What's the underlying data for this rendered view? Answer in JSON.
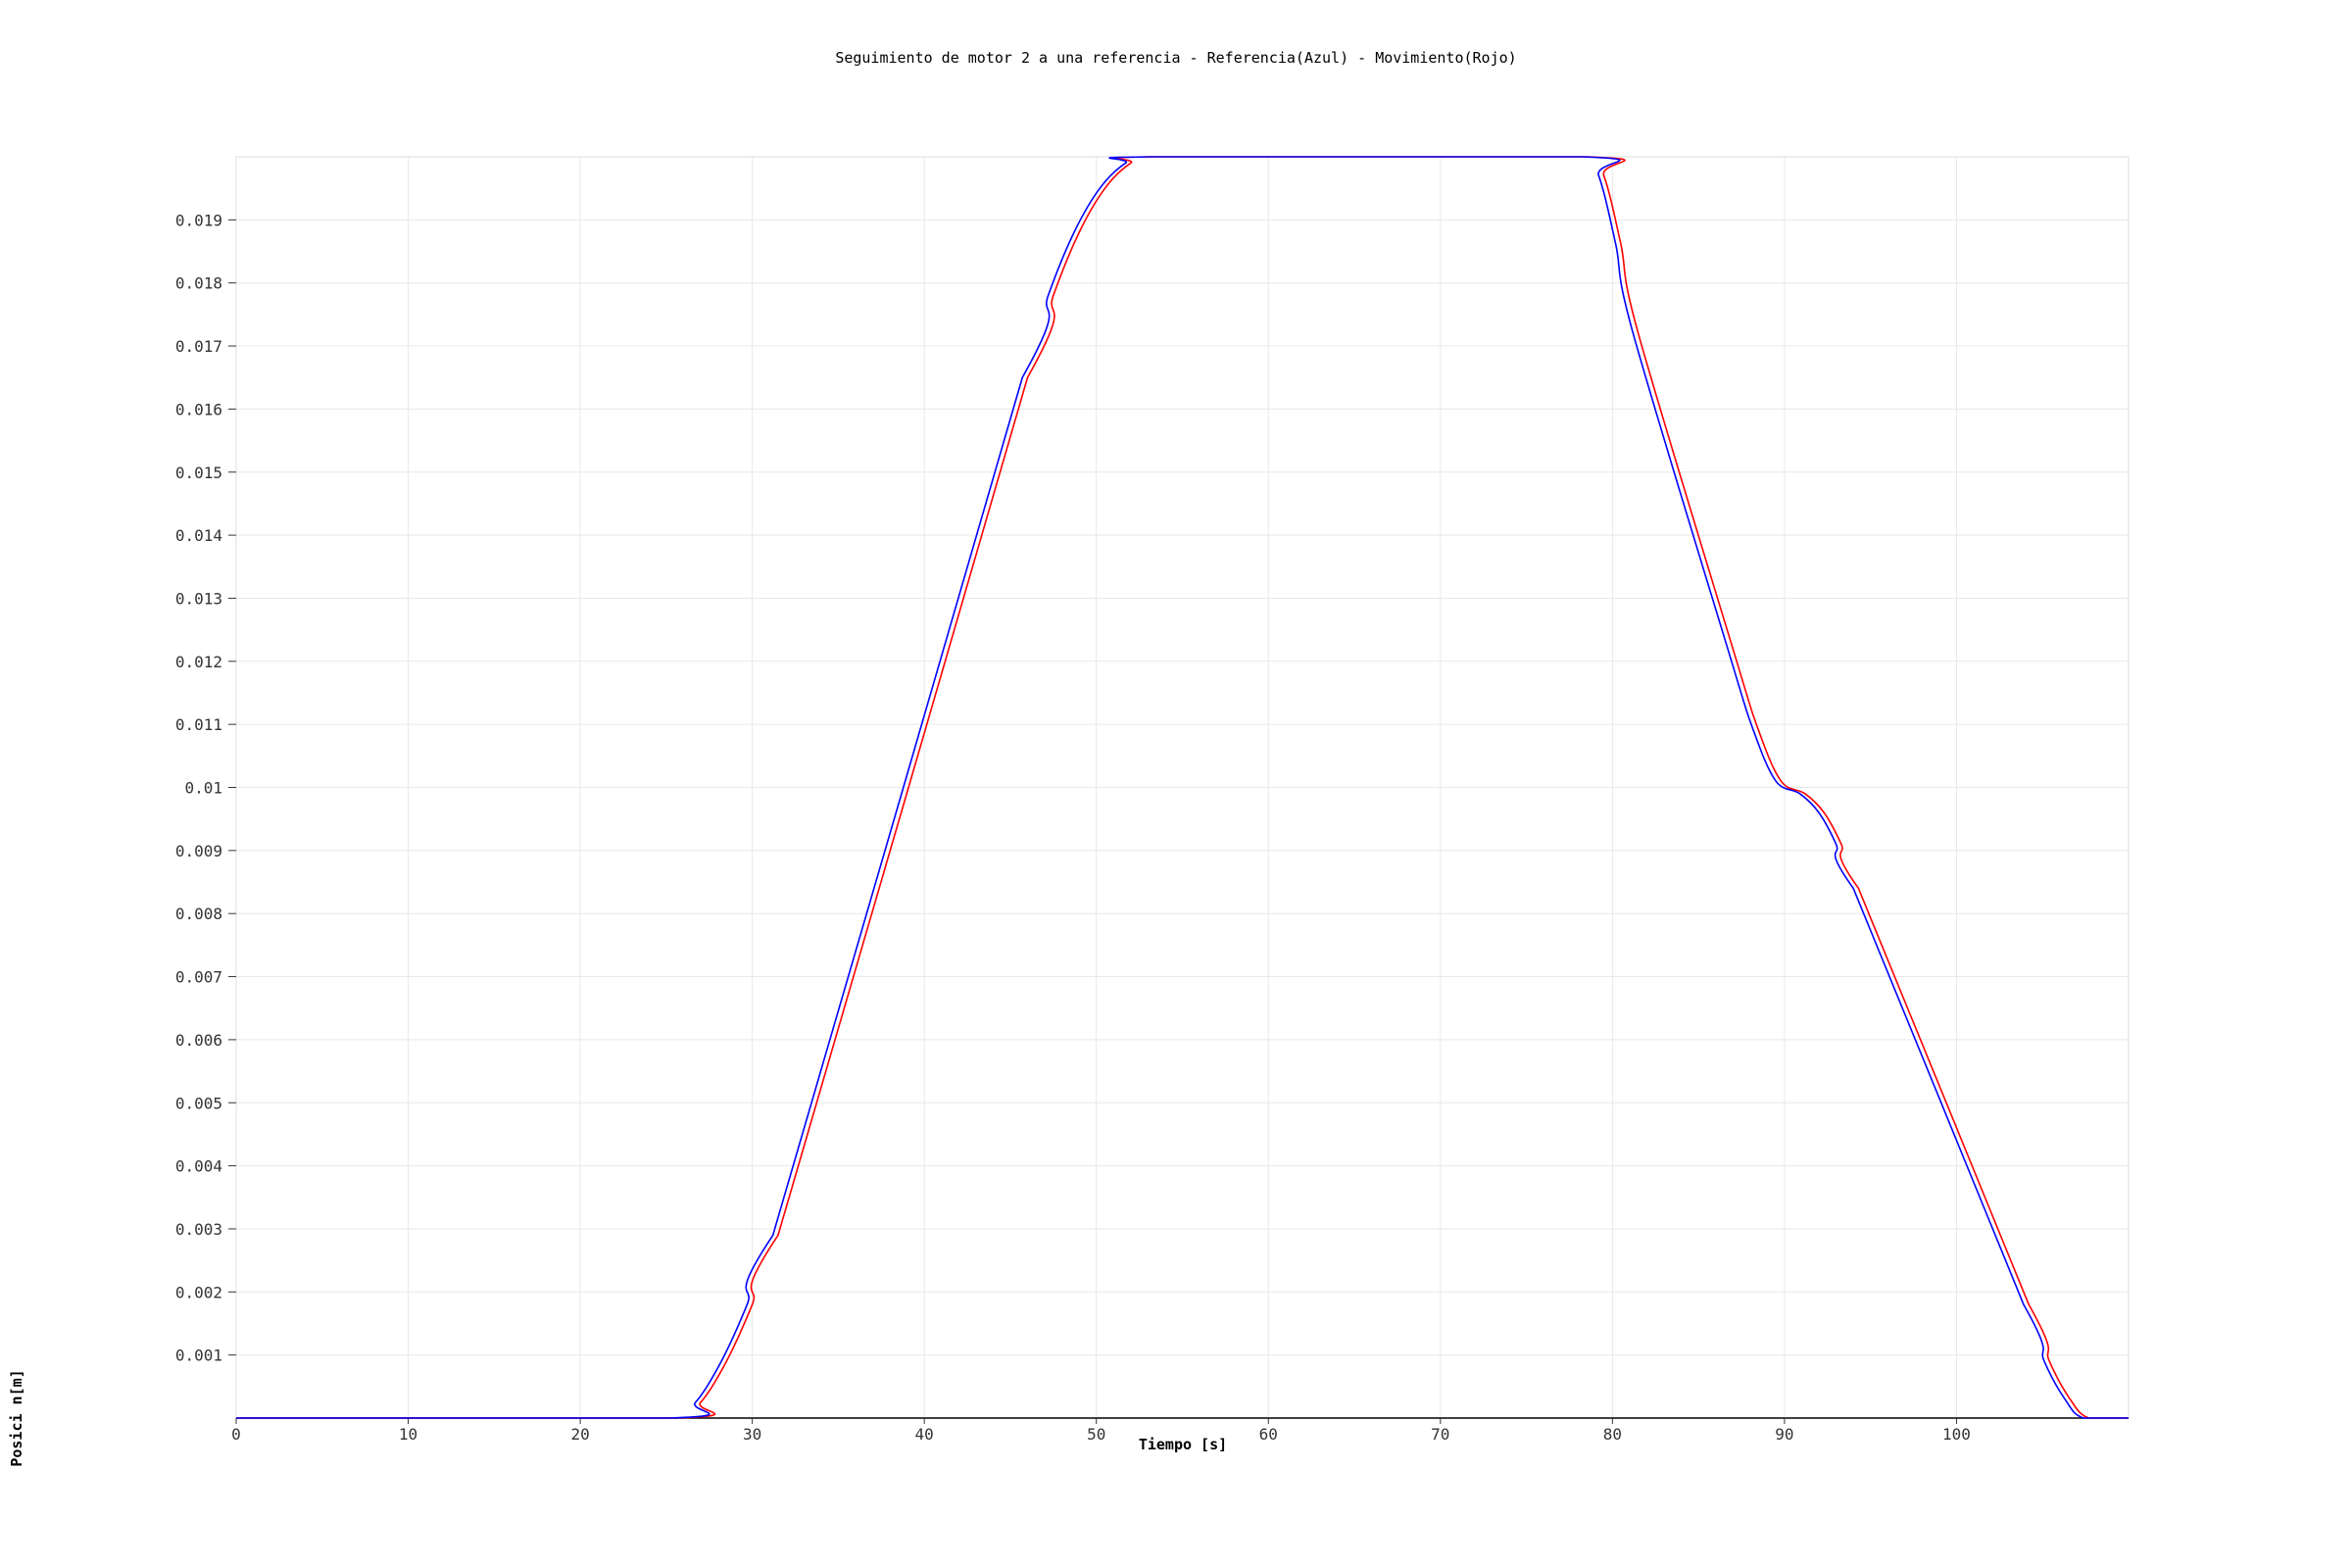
{
  "chart_data": {
    "type": "line",
    "title": "Seguimiento de motor 2 a una referencia - Referencia(Azul) - Movimiento(Rojo)",
    "xlabel": "Tiempo [s]",
    "ylabel": "Posici n[m]",
    "xlim": [
      0,
      110
    ],
    "ylim": [
      0,
      0.02
    ],
    "grid": true,
    "x_ticks": [
      "0",
      "10",
      "20",
      "30",
      "40",
      "50",
      "60",
      "70",
      "80",
      "90",
      "100"
    ],
    "y_ticks": [
      "0.001",
      "0.002",
      "0.003",
      "0.004",
      "0.005",
      "0.006",
      "0.007",
      "0.008",
      "0.009",
      "0.01",
      "0.011",
      "0.012",
      "0.013",
      "0.014",
      "0.015",
      "0.016",
      "0.017",
      "0.018",
      "0.019"
    ],
    "series": [
      {
        "color": "#ff0000",
        "x": [
          0,
          25.5,
          27,
          28.5,
          30,
          31.5,
          46,
          47.5,
          49,
          50.5,
          52,
          53.3,
          78.6,
          79.5,
          80.5,
          81.5,
          87,
          88.5,
          89.8,
          91.2,
          92.3,
          93.3,
          94.3,
          104.2,
          105.4,
          106.6,
          107.7,
          110
        ],
        "y": [
          0,
          0,
          0.00025,
          0.0009,
          0.0018,
          0.0029,
          0.0165,
          0.0178,
          0.0188,
          0.0195,
          0.0199,
          0.02,
          0.02,
          0.0197,
          0.0186,
          0.0172,
          0.0122,
          0.0109,
          0.0101,
          0.0099,
          0.0096,
          0.0091,
          0.0084,
          0.0018,
          0.0009,
          0.0003,
          0,
          0
        ]
      },
      {
        "color": "#0000ff",
        "x": [
          0,
          25.2,
          26.7,
          28.2,
          29.7,
          31.2,
          45.7,
          47.2,
          48.7,
          50.2,
          51.7,
          53,
          78.3,
          79.2,
          80.2,
          81.2,
          86.7,
          88.2,
          89.5,
          90.9,
          92,
          93,
          94,
          103.9,
          105.1,
          106.3,
          107.4,
          110
        ],
        "y": [
          0,
          0,
          0.00025,
          0.0009,
          0.0018,
          0.0029,
          0.0165,
          0.0178,
          0.0188,
          0.0195,
          0.0199,
          0.02,
          0.02,
          0.0197,
          0.0186,
          0.0172,
          0.0122,
          0.0109,
          0.0101,
          0.0099,
          0.0096,
          0.0091,
          0.0084,
          0.0018,
          0.0009,
          0.0003,
          0,
          0
        ]
      }
    ]
  }
}
